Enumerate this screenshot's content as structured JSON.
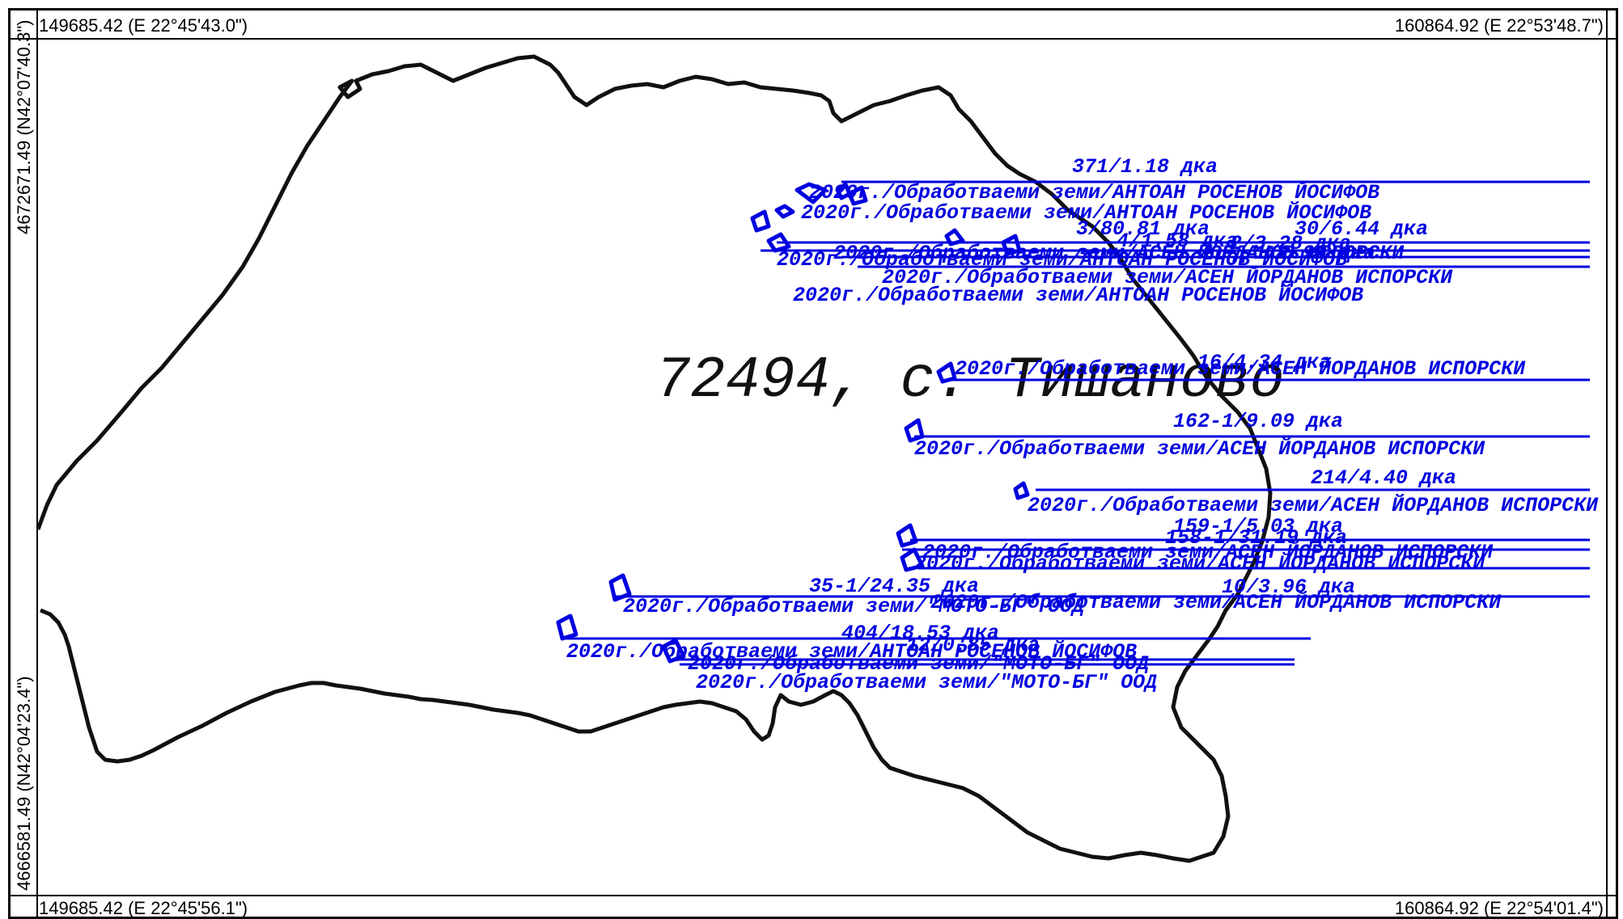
{
  "corners": {
    "top_left": "149685.42 (E 22°45'43.0\")",
    "top_right": "160864.92 (E 22°53'48.7\")",
    "bottom_left": "149685.42 (E 22°45'56.1\")",
    "bottom_right": "160864.92 (E 22°54'01.4\")",
    "left_upper": "4672671.49 (N42°07'40.3\")",
    "left_lower": "4666581.49 (N42°04'23.4\")"
  },
  "map_title": "72494, с. Тишаново",
  "parcels": [
    {
      "id": "371/1.18 дка",
      "owner": "2020г./Обработваеми земи/АНТОАН РОСЕНОВ ЙОСИФОВ"
    },
    {
      "id": "3/80.81 дка",
      "owner": "2020г./Обработваеми земи/АНТОАН РОСЕНОВ ЙОСИФОВ"
    },
    {
      "id": "30/6.44 дка",
      "owner": "2020г./Обработваеми земи/АСЕН ЙОРДАНОВ ИСПОРСКИ"
    },
    {
      "id": "4/1.58 дка",
      "owner": "2020г./Обработваеми земи/АНТОАН РОСЕНОВ ЙОСИФОВ"
    },
    {
      "id": "2/3.28 дка",
      "owner": "2020г./Обработваеми земи/АСЕН ЙОРДАНОВ ИСПОРСКИ"
    },
    {
      "id": "1/2.99 дка",
      "owner": "2020г./Обработваеми земи/АНТОАН РОСЕНОВ ЙОСИФОВ"
    },
    {
      "id": "16/4.34 дка",
      "owner": "2020г./Обработваеми земи/АСЕН ЙОРДАНОВ ИСПОРСКИ"
    },
    {
      "id": "162-1/9.09 дка",
      "owner": "2020г./Обработваеми земи/АСЕН ЙОРДАНОВ ИСПОРСКИ"
    },
    {
      "id": "214/4.40 дка",
      "owner": "2020г./Обработваеми земи/АСЕН ЙОРДАНОВ ИСПОРСКИ"
    },
    {
      "id": "159-1/5.03 дка",
      "owner": "2020г./Обработваеми земи/АСЕН ЙОРДАНОВ ИСПОРСКИ"
    },
    {
      "id": "158-1/31.19 дка",
      "owner": "2020г./Обработваеми земи/АСЕН ЙОРДАНОВ ИСПОРСКИ"
    },
    {
      "id": "10/3.96 дка",
      "owner": "2020г./Обработваеми земи/АСЕН ЙОРДАНОВ ИСПОРСКИ"
    },
    {
      "id": "35-1/24.35 дка",
      "owner": "2020г./Обработваеми земи/\"МОТО-БГ\" ООД"
    },
    {
      "id": "404/18.53 дка",
      "owner": "2020г./Обработваеми земи/АНТОАН РОСЕНОВ ЙОСИФОВ"
    },
    {
      "id": "12/0.85 дка",
      "owner": "2020г./Обработваеми земи/\"МОТО-БГ\" ООД"
    },
    {
      "id": "",
      "owner": "2020г./Обработваеми земи/\"МОТО-БГ\" ООД"
    }
  ],
  "colors": {
    "boundary": "#111111",
    "parcel": "#0000e0",
    "frame": "#000000"
  }
}
